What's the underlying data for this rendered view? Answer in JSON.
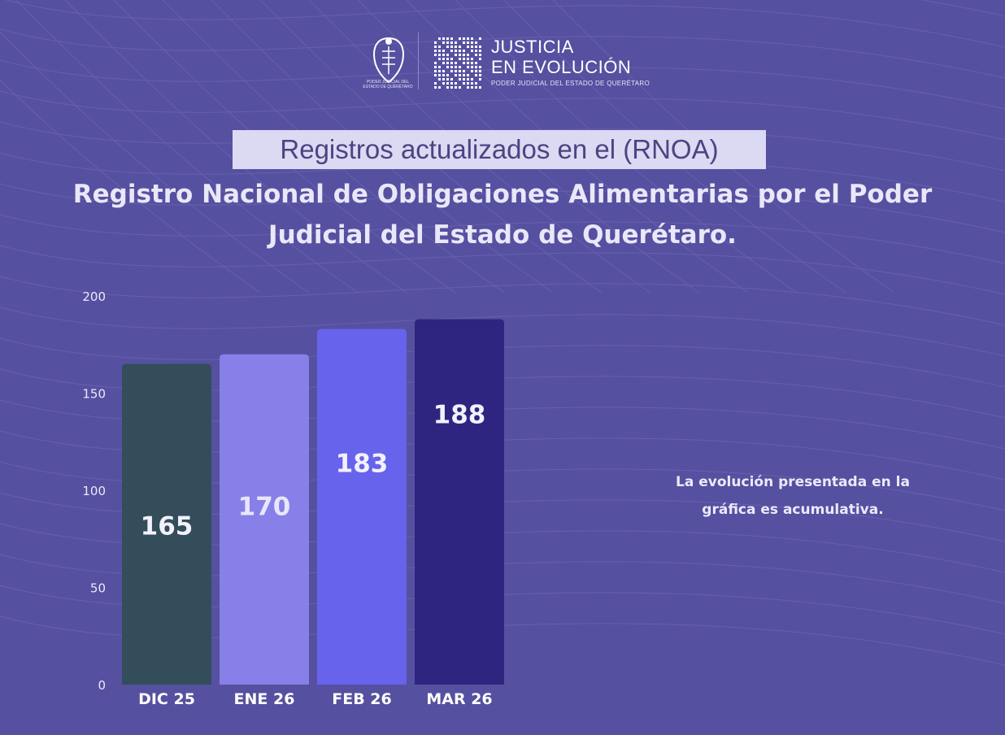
{
  "logo": {
    "seal_caption": "PODER JUDICIAL DEL ESTADO DE QUERÉTARO",
    "brand_line1": "JUSTICIA",
    "brand_line2": "EN EVOLUCIÓN",
    "brand_line3": "PODER JUDICIAL DEL ESTADO DE QUERÉTARO"
  },
  "subtitle": "Registros actualizados en el (RNOA)",
  "headline": "Registro Nacional de Obligaciones Alimentarias por el Poder Judicial del Estado de Querétaro.",
  "note": "La evolución presentada en la gráfica es acumulativa.",
  "colors": {
    "background": "#5650a0",
    "bars": [
      "#334d5a",
      "#8680e8",
      "#6763ec",
      "#2d2580"
    ]
  },
  "chart_data": {
    "type": "bar",
    "categories": [
      "DIC 25",
      "ENE 26",
      "FEB 26",
      "MAR 26"
    ],
    "values": [
      165,
      170,
      183,
      188
    ],
    "ylim": [
      0,
      200
    ],
    "yticks": [
      0,
      50,
      100,
      150,
      200
    ],
    "title": "",
    "xlabel": "",
    "ylabel": "",
    "grid": false
  }
}
